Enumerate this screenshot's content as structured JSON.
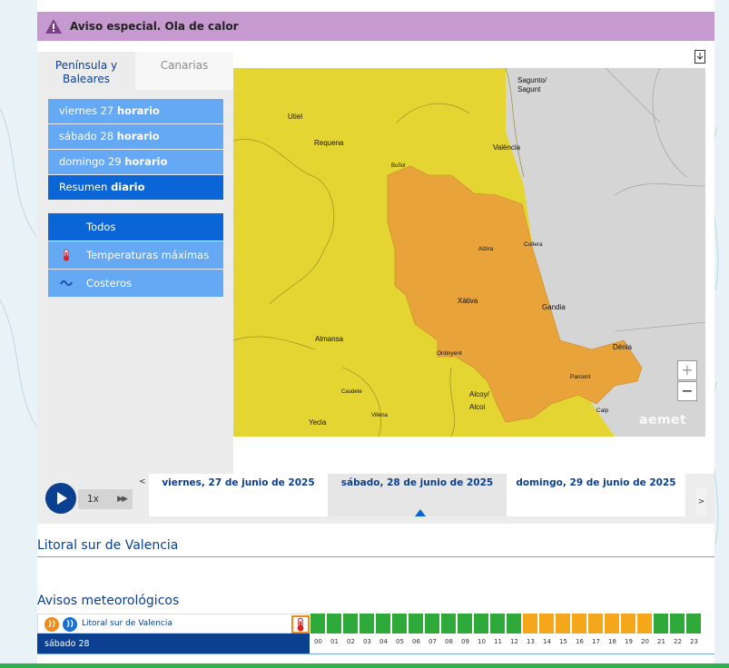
{
  "alert": {
    "text": "Aviso especial. Ola de calor"
  },
  "tabs": [
    {
      "label": "Península y Baleares",
      "active": true
    },
    {
      "label": "Canarias",
      "active": false
    }
  ],
  "days": [
    {
      "label": "viernes 27",
      "suffix": "horario"
    },
    {
      "label": "sábado 28",
      "suffix": "horario"
    },
    {
      "label": "domingo 29",
      "suffix": "horario"
    },
    {
      "label": "Resumen",
      "suffix": "diario",
      "selected": true
    }
  ],
  "filters": [
    {
      "label": "Todos",
      "icon": "none",
      "selected": true
    },
    {
      "label": "Temperaturas máximas",
      "icon": "thermometer-icon"
    },
    {
      "label": "Costeros",
      "icon": "wave-icon"
    }
  ],
  "map": {
    "places": [
      "Sagunto/",
      "Sagunt",
      "Utiel",
      "Requena",
      "València",
      "Buñol",
      "Alzira",
      "Cullera",
      "Xàtiva",
      "Gandia",
      "Almansa",
      "Ontinyent",
      "Dénia",
      "Parcent",
      "Caudete",
      "Alcoy/",
      "Alcoi",
      "Villena",
      "Calp",
      "Yecla"
    ],
    "zoom_in": "+",
    "zoom_out": "−",
    "logo": "aemet",
    "colors": {
      "yellow": "#e4d533",
      "orange": "#e9a33b",
      "gray": "#d5d5d5"
    }
  },
  "timeline": {
    "speed": "1x",
    "ff": "▶▶",
    "prev": "<",
    "next": ">",
    "days": [
      {
        "label": "viernes, 27 de junio de 2025"
      },
      {
        "label": "sábado, 28 de junio de 2025",
        "selected": true
      },
      {
        "label": "domingo, 29 de junio de 2025"
      }
    ]
  },
  "region_title": "Litoral sur de Valencia",
  "avisos_title": "Avisos meteorológicos",
  "avisos": {
    "rss_link": "Litoral sur de Valencia",
    "day": "sábado 28",
    "hours": [
      "00",
      "01",
      "02",
      "03",
      "04",
      "05",
      "06",
      "07",
      "08",
      "09",
      "10",
      "11",
      "12",
      "13",
      "14",
      "15",
      "16",
      "17",
      "18",
      "19",
      "20",
      "21",
      "22",
      "23"
    ],
    "levels": [
      "green",
      "green",
      "green",
      "green",
      "green",
      "green",
      "green",
      "green",
      "green",
      "green",
      "green",
      "green",
      "green",
      "yellow",
      "yellow",
      "yellow",
      "yellow",
      "yellow",
      "yellow",
      "yellow",
      "yellow",
      "green",
      "green",
      "green"
    ],
    "level_colors": {
      "green": "#2fa93a",
      "yellow": "#f5a71c"
    }
  }
}
